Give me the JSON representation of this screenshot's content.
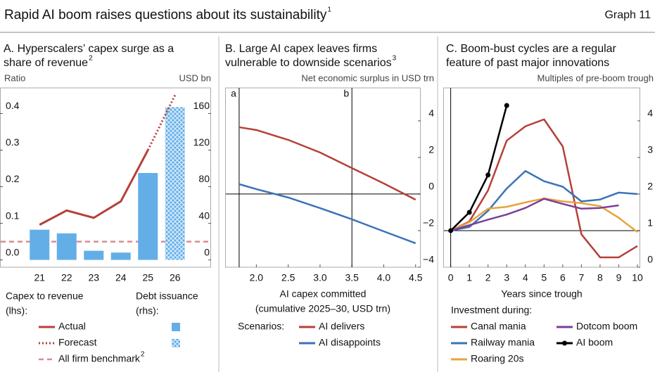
{
  "header": {
    "title": "Rapid AI boom raises questions about its sustainability",
    "title_note": "1",
    "graph_label": "Graph 11"
  },
  "chart_data": [
    {
      "type": "bar",
      "subtitle": [
        "A. Hyperscalers’ capex surge as a",
        "share of revenue"
      ],
      "subtitle_note": "2",
      "ylabel": "Ratio",
      "y2label": "USD bn",
      "categories": [
        "21",
        "22",
        "23",
        "24",
        "25",
        "26"
      ],
      "ylim": [
        -0.02,
        0.47
      ],
      "yticks": [
        {
          "value": 0,
          "label": "0.0"
        },
        0.1,
        0.2,
        0.3,
        0.4
      ],
      "y2lim": [
        -8,
        188
      ],
      "y2ticks": [
        0,
        40,
        80,
        120,
        160
      ],
      "series": [
        {
          "name": "Actual",
          "type": "line",
          "color": "#b5403a",
          "style": "solid",
          "values": [
            0.096,
            0.135,
            0.115,
            0.16,
            0.3,
            null
          ]
        },
        {
          "name": "Forecast",
          "type": "line",
          "color": "#b5403a",
          "style": "dotted",
          "values": [
            null,
            null,
            null,
            null,
            0.3,
            0.45
          ]
        },
        {
          "type": "bar",
          "axis": "y2",
          "color": "#64aee8",
          "values": [
            33,
            29,
            10,
            8,
            95,
            null
          ]
        },
        {
          "type": "bar",
          "axis": "y2",
          "color": "#64aee8",
          "hatched": true,
          "values": [
            null,
            null,
            null,
            null,
            null,
            167
          ]
        }
      ],
      "reference_lines": [
        {
          "name": "All firm benchmark",
          "name_note": "2",
          "value": 0.05,
          "color": "#d98b8f",
          "style": "dashed"
        }
      ],
      "legend": {
        "lhs_title": [
          "Capex to revenue",
          "(lhs):"
        ],
        "rhs_title": [
          "Debt issuance",
          "(rhs):"
        ]
      }
    },
    {
      "type": "line",
      "subtitle": [
        "B. Large AI capex leaves firms",
        "vulnerable to downside scenarios"
      ],
      "subtitle_note": "3",
      "ylabel": "Net economic surplus in USD trn",
      "xlabel": [
        "AI capex committed",
        "(cumulative 2025–30, USD trn)"
      ],
      "x": [
        1.73,
        2,
        2.5,
        3,
        3.5,
        4,
        4.5
      ],
      "xlim": [
        1.51,
        4.58
      ],
      "xticks": [
        {
          "value": 2,
          "label": "2.0"
        },
        2.5,
        {
          "value": 3,
          "label": "3.0"
        },
        3.5,
        {
          "value": 4,
          "label": "4.0"
        },
        4.5
      ],
      "ylim": [
        -4,
        5.8
      ],
      "yticks": [
        {
          "value": -4,
          "label": "−4"
        },
        {
          "value": -2,
          "label": "−2"
        },
        0,
        2,
        4
      ],
      "vlines": [
        {
          "value": 1.73,
          "label": "a"
        },
        {
          "value": 3.5,
          "label": "b"
        }
      ],
      "reference_lines": [
        {
          "value": 0
        }
      ],
      "legend_title": "Scenarios:",
      "series": [
        {
          "name": "AI delivers",
          "color": "#b5403a",
          "values": [
            3.65,
            3.5,
            2.96,
            2.27,
            1.42,
            0.58,
            -0.31
          ]
        },
        {
          "name": "AI disappoints",
          "color": "#3b73b9",
          "values": [
            0.54,
            0.27,
            -0.19,
            -0.77,
            -1.38,
            -2.04,
            -2.69
          ]
        }
      ]
    },
    {
      "type": "line",
      "subtitle": [
        "C. Boom-bust cycles are a regular",
        "feature of past major innovations"
      ],
      "ylabel": "Multiples of pre-boom trough",
      "xlabel": [
        "Years since trough"
      ],
      "x": [
        0,
        1,
        2,
        3,
        4,
        5,
        6,
        7,
        8,
        9,
        10
      ],
      "xlim": [
        -0.4,
        10.15
      ],
      "xticks": [
        0,
        1,
        2,
        3,
        4,
        5,
        6,
        7,
        8,
        9,
        10
      ],
      "ylim": [
        0,
        4.9
      ],
      "yticks": [
        0,
        1,
        2,
        3,
        4
      ],
      "vlines": [
        {
          "value": 0
        }
      ],
      "reference_lines": [
        {
          "value": 1
        }
      ],
      "legend_title": "Investment during:",
      "series": [
        {
          "name": "Canal mania",
          "color": "#b5403a",
          "values": [
            1.0,
            1.25,
            2.1,
            3.46,
            3.85,
            4.04,
            3.3,
            0.9,
            0.27,
            0.27,
            0.58
          ]
        },
        {
          "name": "Railway mania",
          "color": "#3b73b9",
          "values": [
            1.0,
            1.1,
            1.54,
            2.15,
            2.63,
            2.35,
            2.2,
            1.8,
            1.85,
            2.04,
            2.0
          ]
        },
        {
          "name": "Roaring 20s",
          "color": "#e8a33d",
          "values": [
            1.0,
            1.23,
            1.6,
            1.65,
            1.77,
            1.88,
            1.8,
            1.75,
            1.67,
            1.35,
            0.96
          ]
        },
        {
          "name": "Dotcom boom",
          "color": "#7b3f98",
          "values": [
            1.0,
            1.15,
            1.3,
            1.44,
            1.62,
            1.87,
            1.73,
            1.6,
            1.62,
            1.69,
            null
          ]
        },
        {
          "name": "AI boom",
          "color": "#000000",
          "markers": true,
          "values": [
            1.0,
            1.5,
            2.52,
            4.42,
            null,
            null,
            null,
            null,
            null,
            null,
            null
          ]
        }
      ]
    }
  ]
}
